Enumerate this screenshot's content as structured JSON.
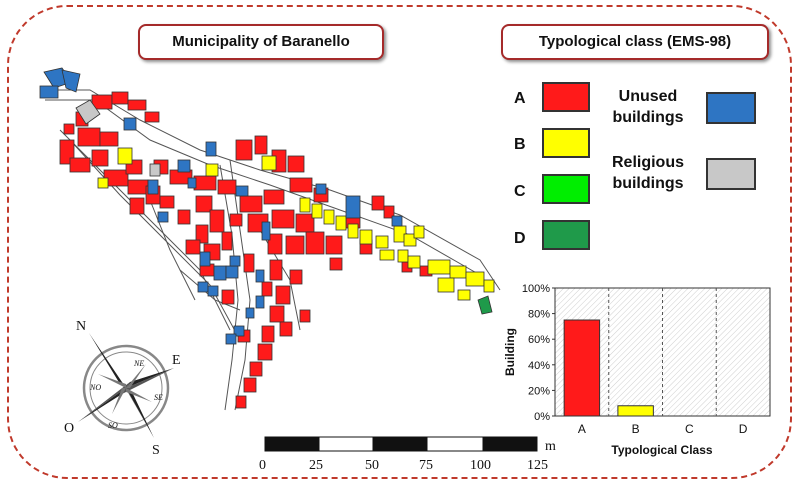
{
  "titles": {
    "map_title": "Municipality of Baranello",
    "legend_title": "Typological class (EMS-98)"
  },
  "legend": {
    "classes": [
      {
        "letter": "A",
        "color": "#ff1a1a"
      },
      {
        "letter": "B",
        "color": "#ffff00"
      },
      {
        "letter": "C",
        "color": "#00ee00"
      },
      {
        "letter": "D",
        "color": "#1f9a4a"
      }
    ],
    "extra": [
      {
        "label_line1": "Unused",
        "label_line2": "buildings",
        "color": "#2e75c3"
      },
      {
        "label_line1": "Religious",
        "label_line2": "buildings",
        "color": "#c8c8c8"
      }
    ]
  },
  "compass": {
    "labels": [
      "N",
      "E",
      "S",
      "O",
      "NE",
      "SE",
      "SO",
      "NO"
    ]
  },
  "scale_bar": {
    "labels": [
      "0",
      "25",
      "50",
      "75",
      "100",
      "125"
    ],
    "unit": "m"
  },
  "colors": {
    "frame": "#c0392b",
    "title_border": "#a52a2a",
    "road": "#555555"
  },
  "chart_data": {
    "type": "bar",
    "categories": [
      "A",
      "B",
      "C",
      "D"
    ],
    "values": [
      75,
      8,
      0,
      0
    ],
    "bar_colors": [
      "#ff1a1a",
      "#ffff00",
      "#00ee00",
      "#1f9a4a"
    ],
    "xlabel": "Typological Class",
    "ylabel": "Building",
    "ylim": [
      0,
      100
    ],
    "yticks": [
      "0%",
      "20%",
      "40%",
      "60%",
      "80%",
      "100%"
    ],
    "grid": "vertical dashed separators"
  }
}
